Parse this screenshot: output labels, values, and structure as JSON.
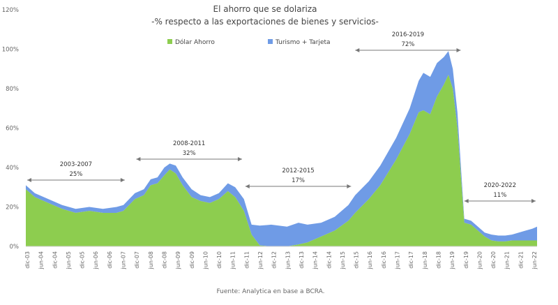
{
  "chart_data": {
    "type": "area",
    "stacked": true,
    "title": "El ahorro que se dolariza",
    "subtitle": "-% respecto a las exportaciones de bienes y servicios-",
    "source": "Fuente: Analytica en base a BCRA.",
    "ylim": [
      0,
      120
    ],
    "yticks": [
      "0%",
      "20%",
      "40%",
      "60%",
      "80%",
      "100%",
      "120%"
    ],
    "grid": false,
    "legend": "top-center",
    "x_ticks": [
      "dic-03",
      "jun-04",
      "dic-04",
      "jun-05",
      "dic-05",
      "jun-06",
      "dic-06",
      "jun-07",
      "dic-07",
      "jun-08",
      "dic-08",
      "jun-09",
      "dic-09",
      "jun-10",
      "dic-10",
      "jun-11",
      "dic-11",
      "jun-12",
      "dic-12",
      "jun-13",
      "dic-13",
      "jun-14",
      "dic-14",
      "jun-15",
      "dic-15",
      "jun-16",
      "dic-16",
      "jun-17",
      "dic-17",
      "jun-18",
      "dic-18",
      "jun-19",
      "dic-19",
      "jun-20",
      "dic-20",
      "jun-21",
      "dic-21",
      "jun-22"
    ],
    "x": [
      2003.92,
      2004.25,
      2004.75,
      2005.25,
      2005.75,
      2006.25,
      2006.75,
      2007.25,
      2007.5,
      2007.92,
      2008.25,
      2008.5,
      2008.75,
      2009.0,
      2009.2,
      2009.42,
      2009.67,
      2010.0,
      2010.33,
      2010.67,
      2011.0,
      2011.33,
      2011.6,
      2011.92,
      2012.2,
      2012.5,
      2012.92,
      2013.5,
      2013.92,
      2014.25,
      2014.75,
      2015.25,
      2015.75,
      2016.0,
      2016.5,
      2016.92,
      2017.5,
      2018.0,
      2018.33,
      2018.5,
      2018.75,
      2019.0,
      2019.25,
      2019.42,
      2019.58,
      2019.75,
      2020.0,
      2020.25,
      2020.5,
      2020.75,
      2021.0,
      2021.25,
      2021.5,
      2021.75,
      2022.0,
      2022.25,
      2022.5,
      2022.67
    ],
    "series": [
      {
        "name": "Dólar Ahorro",
        "color": "#8dcd4f",
        "values": [
          29,
          25,
          22,
          19,
          17,
          18,
          17,
          17,
          18,
          24,
          26,
          31,
          32,
          36,
          39,
          37,
          31,
          25,
          23,
          22,
          24,
          28,
          25,
          18,
          6,
          0.5,
          0,
          0,
          1,
          2,
          5,
          8,
          13,
          17,
          24,
          31,
          44,
          57,
          68,
          69,
          67,
          76,
          82,
          87,
          80,
          60,
          12,
          11,
          8,
          5,
          3,
          2.5,
          2.5,
          3,
          3,
          3,
          3,
          3
        ]
      },
      {
        "name": "Turismo + Tarjeta",
        "color": "#6f9be6",
        "values": [
          2,
          2,
          2,
          2,
          2,
          2,
          2,
          3,
          3,
          3,
          3,
          3,
          3,
          4,
          3,
          4,
          4,
          4,
          3,
          3,
          3,
          4,
          5,
          6,
          5,
          10,
          11,
          10,
          11,
          9,
          7,
          7,
          8,
          9,
          9,
          10,
          11,
          13,
          16,
          19,
          19,
          17,
          14,
          12,
          10,
          8,
          2,
          2,
          2,
          2,
          3,
          3,
          3,
          3,
          4,
          5,
          6,
          7
        ]
      }
    ],
    "annotations": [
      {
        "period": "2003-2007",
        "value": "25%",
        "from": 2003.92,
        "to": 2007.6
      },
      {
        "period": "2008-2011",
        "value": "32%",
        "from": 2007.92,
        "to": 2011.9
      },
      {
        "period": "2012-2015",
        "value": "17%",
        "from": 2011.92,
        "to": 2015.9
      },
      {
        "period": "2016-2019",
        "value": "72%",
        "from": 2015.95,
        "to": 2019.92
      },
      {
        "period": "2020-2022",
        "value": "11%",
        "from": 2019.95,
        "to": 2022.67
      }
    ]
  }
}
